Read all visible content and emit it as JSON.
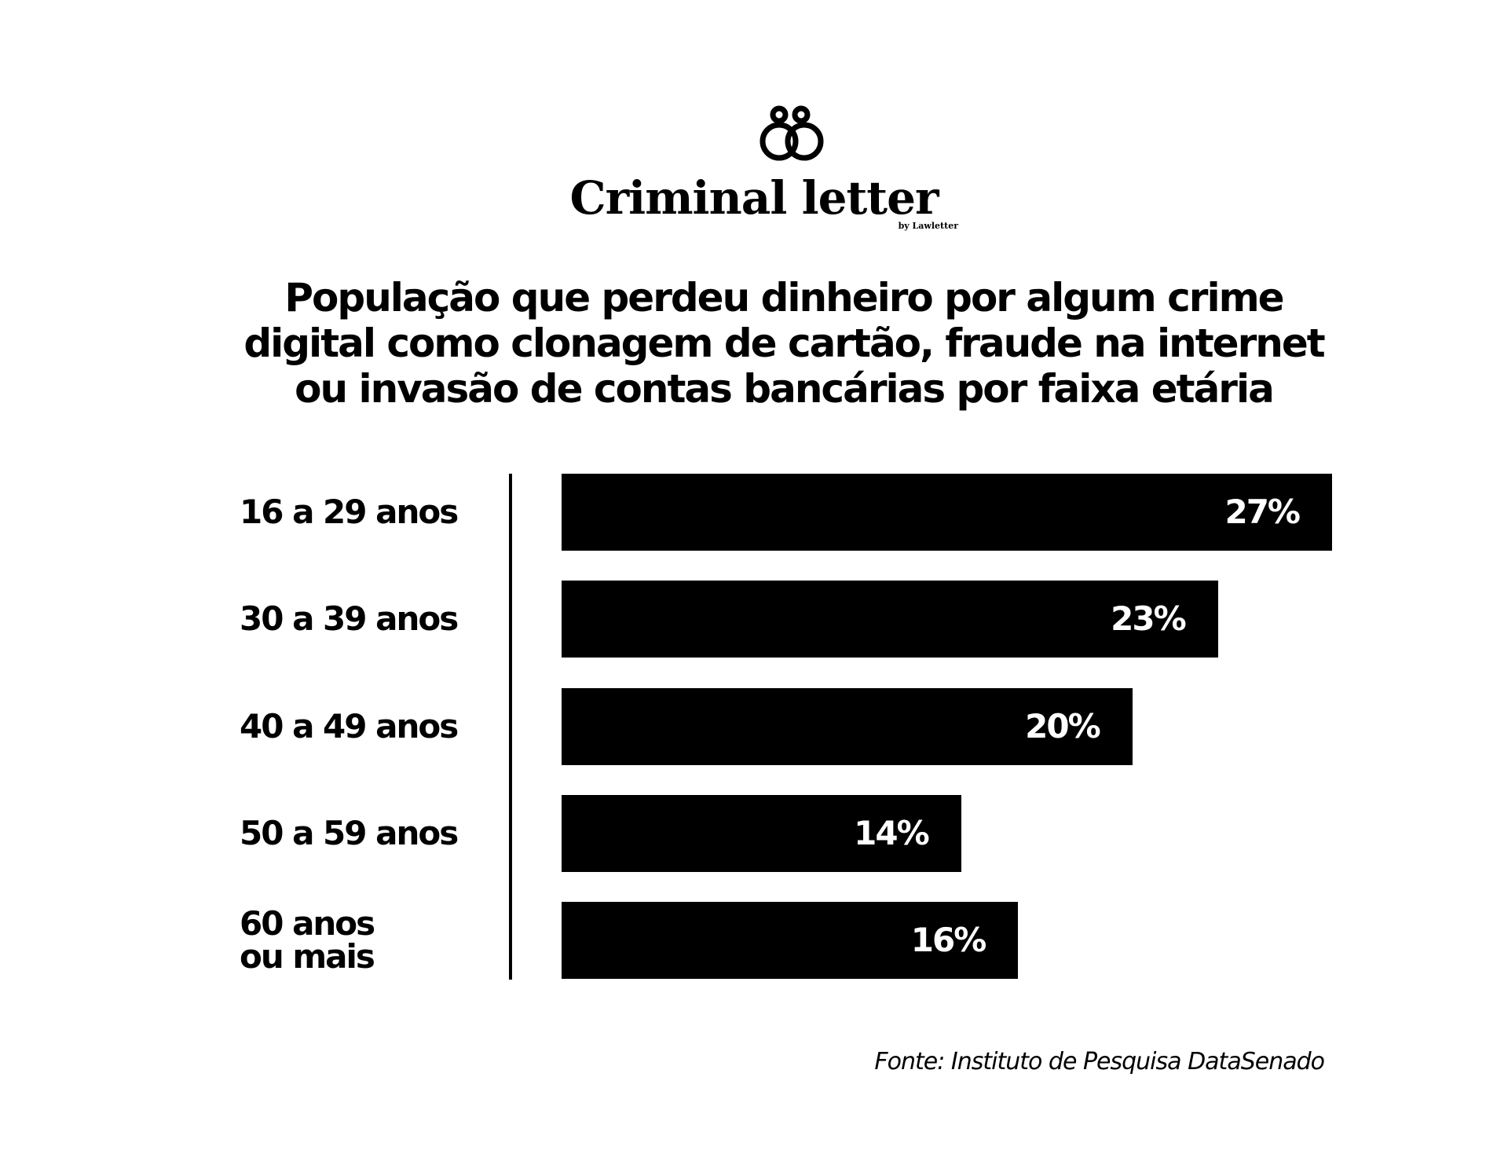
{
  "brand": {
    "name": "Criminal letter",
    "byline": "by Lawletter"
  },
  "chart_data": {
    "type": "bar",
    "orientation": "horizontal",
    "title": "População que perdeu dinheiro por algum crime digital como clonagem de cartão, fraude na internet ou invasão de contas bancárias por faixa etária",
    "categories": [
      "16 a 29 anos",
      "30 a 39 anos",
      "40 a 49 anos",
      "50 a 59 anos",
      "60 anos ou mais"
    ],
    "values": [
      27,
      23,
      20,
      14,
      16
    ],
    "value_labels": [
      "27%",
      "23%",
      "20%",
      "14%",
      "16%"
    ],
    "color": "#000000",
    "source": "Fonte: Instituto de Pesquisa DataSenado"
  }
}
